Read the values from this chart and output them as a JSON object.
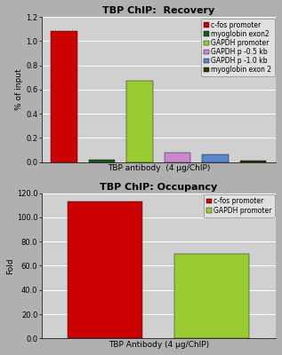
{
  "title1": "TBP ChIP:  Recovery",
  "title2": "TBP ChIP: Occupancy",
  "xlabel1": "TBP antibody  (4 μg/ChIP)",
  "xlabel2": "TBP Antibody (4 μg/ChIP)",
  "ylabel1": "% of input",
  "ylabel2": "Fold",
  "recovery_values": [
    1.08,
    0.02,
    0.67,
    0.08,
    0.06,
    0.01
  ],
  "recovery_colors": [
    "#cc0000",
    "#1a5c1a",
    "#99cc33",
    "#cc88cc",
    "#5588cc",
    "#2a3a00"
  ],
  "recovery_labels": [
    "c-fos promoter",
    "myoglobin exon2",
    "GAPDH promoter",
    "GAPDH p -0.5 kb",
    "GAPDH p -1.0 kb",
    "myoglobin exon 2"
  ],
  "recovery_ylim": [
    0,
    1.2
  ],
  "recovery_yticks": [
    0.0,
    0.2,
    0.4,
    0.6,
    0.8,
    1.0,
    1.2
  ],
  "occupancy_values": [
    113.0,
    70.0
  ],
  "occupancy_colors": [
    "#cc0000",
    "#99cc33"
  ],
  "occupancy_labels": [
    "c-fos promoter",
    "GAPDH promoter"
  ],
  "occupancy_ylim": [
    0,
    120
  ],
  "occupancy_yticks": [
    0.0,
    20.0,
    40.0,
    60.0,
    80.0,
    100.0,
    120.0
  ],
  "bg_color": "#d0d0d0",
  "fig_bg": "#b0b0b0",
  "legend_bg": "#e0e0e0",
  "title_fontsize": 8,
  "label_fontsize": 6.5,
  "tick_fontsize": 6,
  "legend_fontsize": 5.5
}
